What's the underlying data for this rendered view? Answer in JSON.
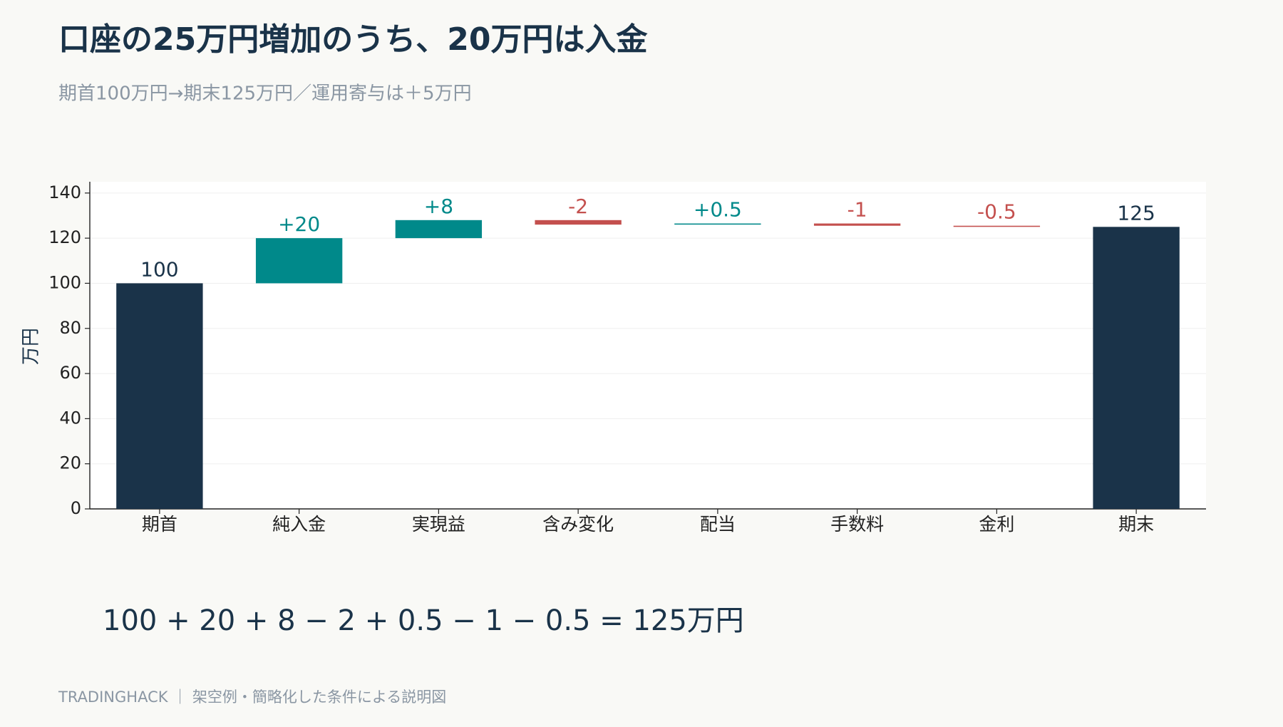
{
  "chart_data": {
    "type": "waterfall",
    "title": "口座の25万円増加のうち、20万円は入金",
    "subtitle": "期首100万円→期末125万円／運用寄与は＋5万円",
    "y_label": "万円",
    "categories": [
      "期首",
      "純入金",
      "実現益",
      "含み変化",
      "配当",
      "手数料",
      "金利",
      "期末"
    ],
    "values": [
      100,
      20,
      8,
      -2,
      0.5,
      -1,
      -0.5,
      125
    ],
    "value_labels": [
      "100",
      "+20",
      "+8",
      "-2",
      "+0.5",
      "-1",
      "-0.5",
      "125"
    ],
    "measures": [
      "absolute",
      "relative",
      "relative",
      "relative",
      "relative",
      "relative",
      "relative",
      "absolute"
    ],
    "colors": {
      "absolute": "#1a3349",
      "increase": "#00898a",
      "decrease": "#c4504e"
    },
    "ylim": [
      0,
      145
    ],
    "yticks": [
      0,
      20,
      40,
      60,
      80,
      100,
      120,
      140
    ],
    "grid": true,
    "equation": "100 + 20 + 8 − 2 + 0.5 − 1 − 0.5 = 125万円",
    "footer": "TRADINGHACK ｜ 架空例・簡略化した条件による説明図"
  }
}
